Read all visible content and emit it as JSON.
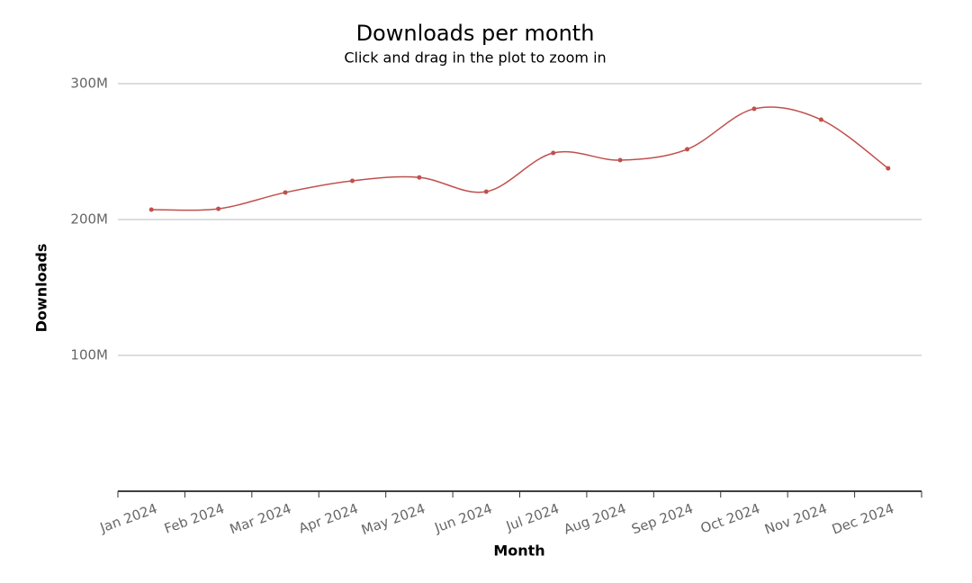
{
  "chart_data": {
    "type": "line",
    "title": "Downloads per month",
    "subtitle": "Click and drag in the plot to zoom in",
    "x_label": "Month",
    "y_label": "Downloads",
    "categories": [
      "Jan 2024",
      "Feb 2024",
      "Mar 2024",
      "Apr 2024",
      "May 2024",
      "Jun 2024",
      "Jul 2024",
      "Aug 2024",
      "Sep 2024",
      "Oct 2024",
      "Nov 2024",
      "Dec 2024"
    ],
    "series": [
      {
        "name": "Downloads",
        "color": "#c0504d",
        "values": [
          207300000,
          207900000,
          219900000,
          228500000,
          231000000,
          220500000,
          249000000,
          243700000,
          251700000,
          281500000,
          273500000,
          237700000
        ]
      }
    ],
    "ylim": [
      0,
      300000000
    ],
    "yticks": [
      {
        "value": 100000000,
        "label": "100M"
      },
      {
        "value": 200000000,
        "label": "200M"
      },
      {
        "value": 300000000,
        "label": "300M"
      }
    ],
    "grid": true,
    "smooth": true
  }
}
